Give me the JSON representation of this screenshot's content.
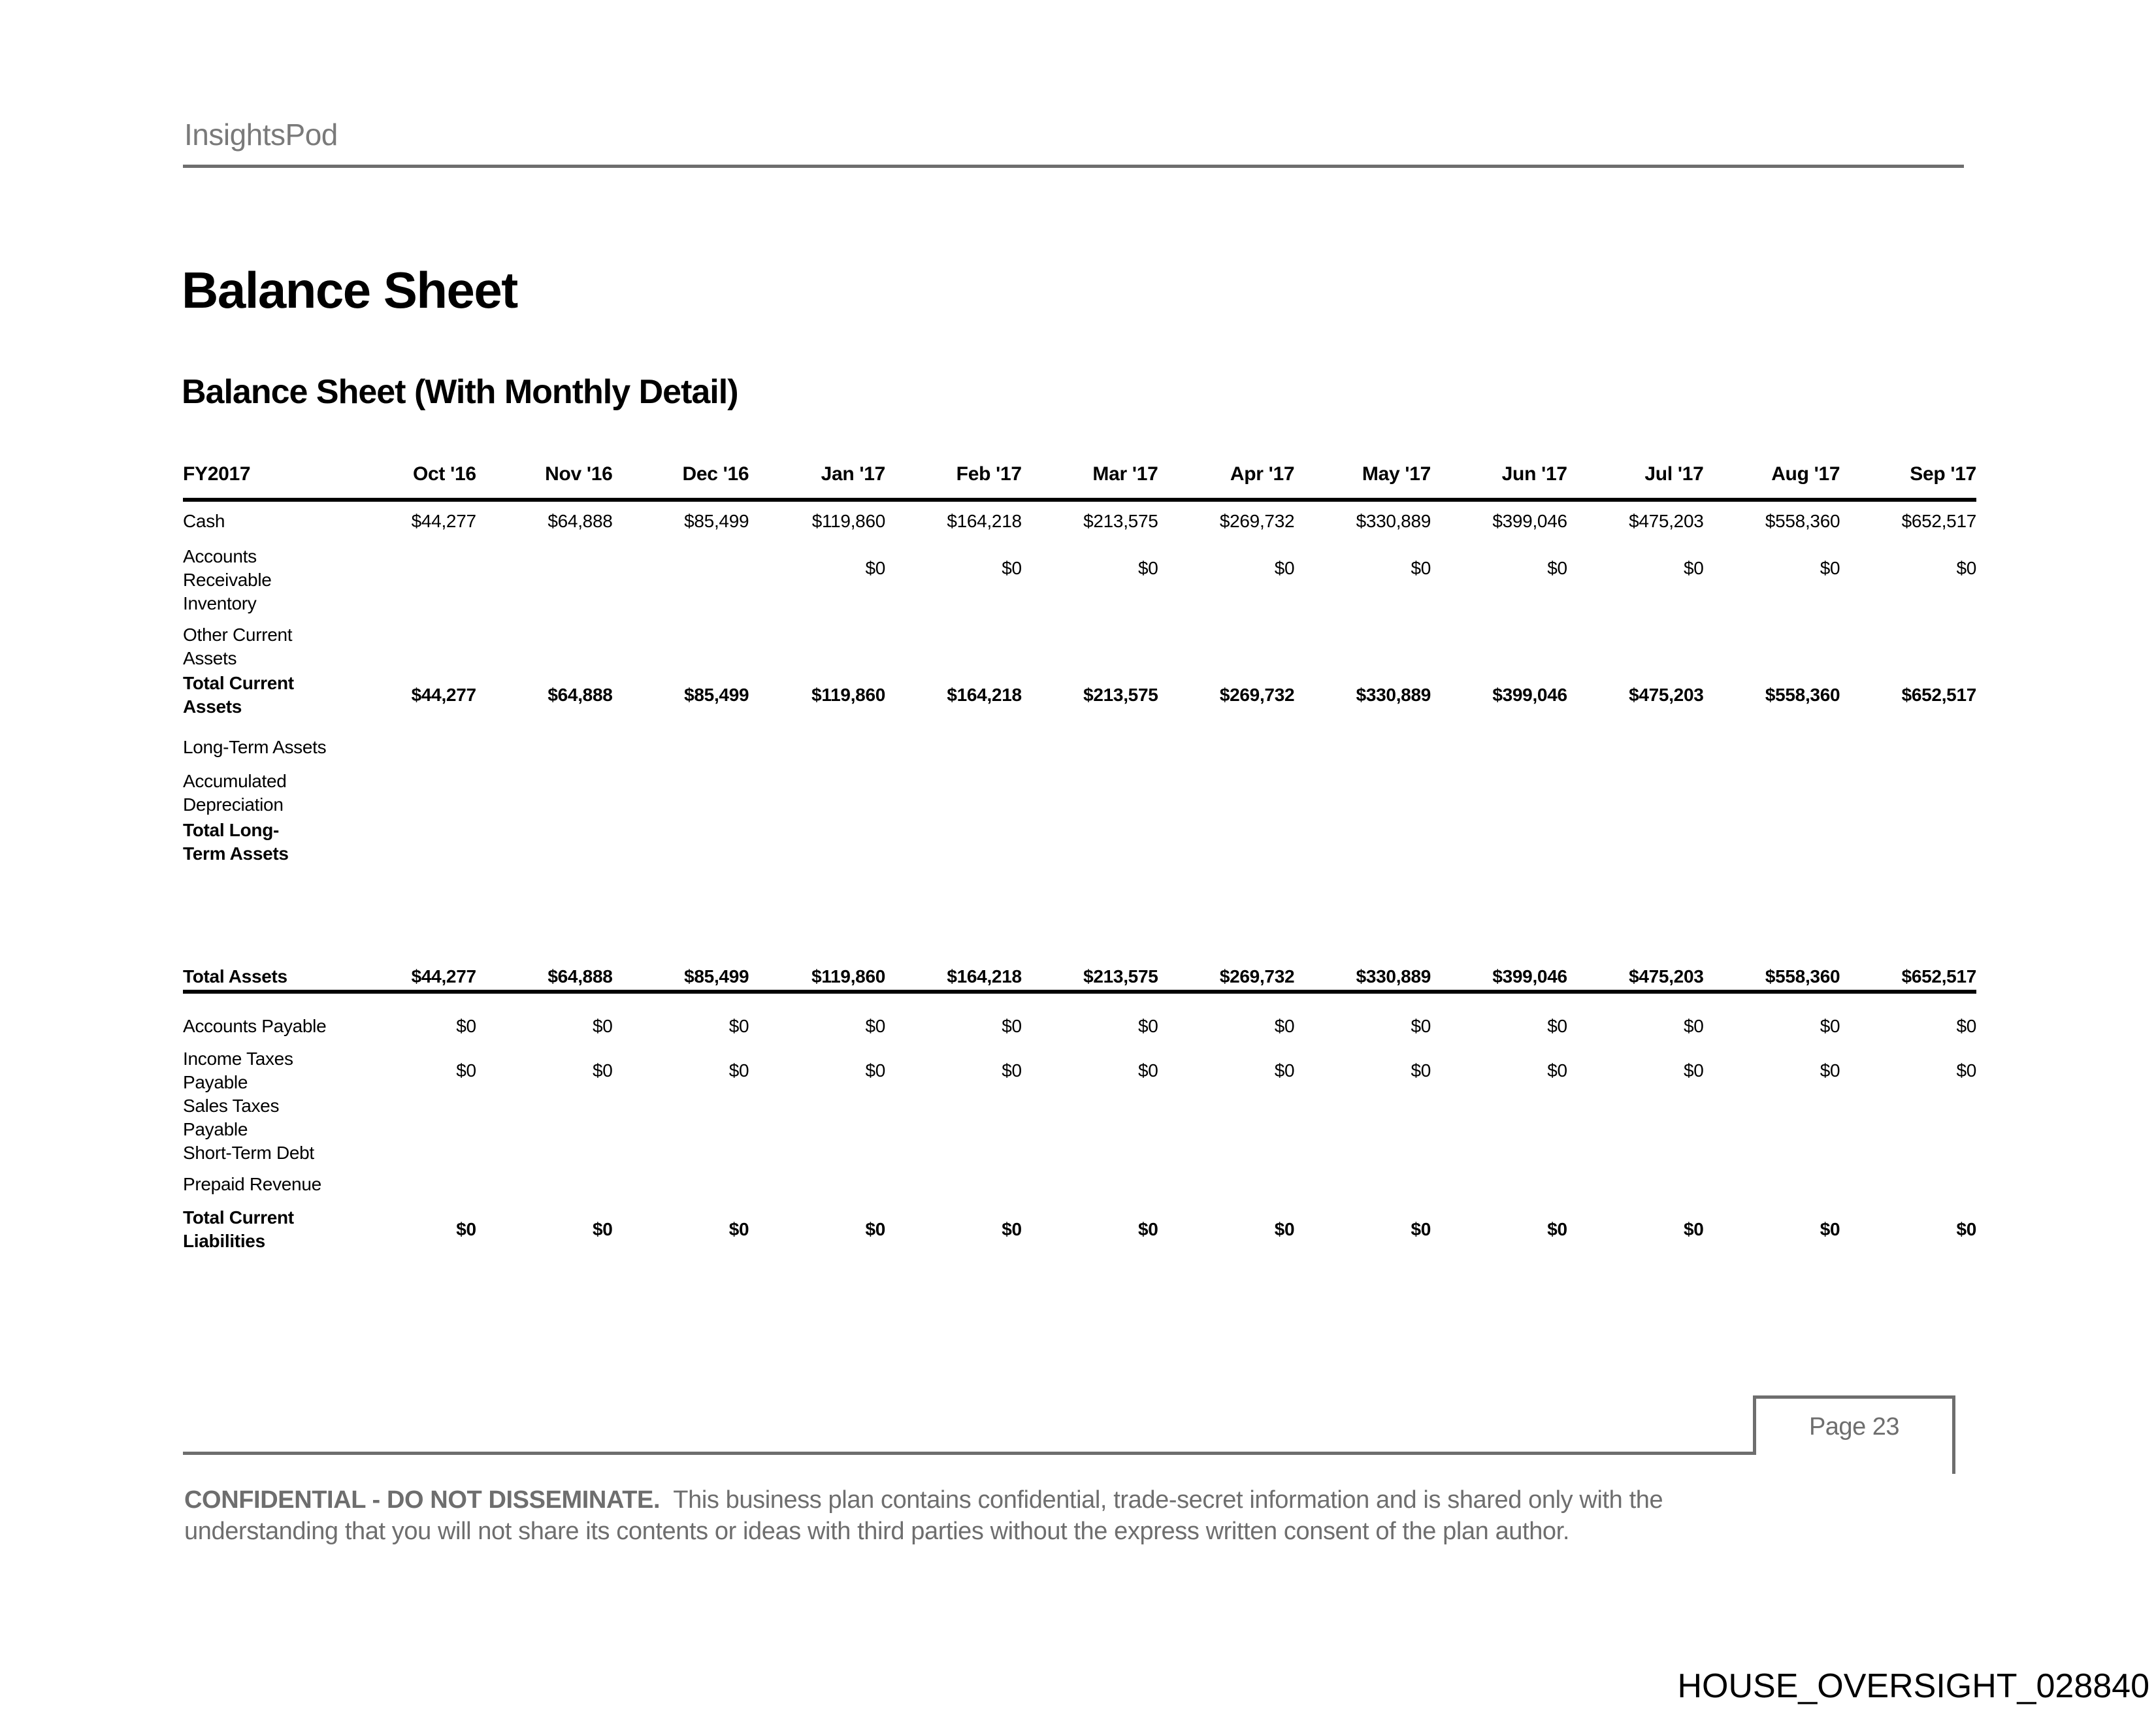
{
  "brand": {
    "name": "InsightsPod"
  },
  "page": {
    "title": "Balance Sheet",
    "subtitle": "Balance Sheet (With Monthly Detail)",
    "page_label": "Page 23",
    "watermark": "HOUSE_OVERSIGHT_028840"
  },
  "table": {
    "fiscal_year": "FY2017",
    "months": [
      "Oct '16",
      "Nov '16",
      "Dec '16",
      "Jan '17",
      "Feb '17",
      "Mar '17",
      "Apr '17",
      "May '17",
      "Jun '17",
      "Jul '17",
      "Aug '17",
      "Sep '17"
    ],
    "rows": [
      {
        "label": "Cash",
        "is_total": false,
        "rule_below": false,
        "gap_before": false,
        "values": [
          "$44,277",
          "$64,888",
          "$85,499",
          "$119,860",
          "$164,218",
          "$213,575",
          "$269,732",
          "$330,889",
          "$399,046",
          "$475,203",
          "$558,360",
          "$652,517"
        ]
      },
      {
        "label": "Accounts\nReceivable",
        "is_total": false,
        "rule_below": false,
        "gap_before": false,
        "values": [
          "",
          "",
          "",
          "$0",
          "$0",
          "$0",
          "$0",
          "$0",
          "$0",
          "$0",
          "$0",
          "$0"
        ]
      },
      {
        "label": "Inventory",
        "is_total": false,
        "rule_below": false,
        "gap_before": false,
        "values": [
          "",
          "",
          "",
          "",
          "",
          "",
          "",
          "",
          "",
          "",
          "",
          ""
        ]
      },
      {
        "label": "Other Current\nAssets",
        "is_total": false,
        "rule_below": false,
        "gap_before": false,
        "values": [
          "",
          "",
          "",
          "",
          "",
          "",
          "",
          "",
          "",
          "",
          "",
          ""
        ]
      },
      {
        "label": "Total Current\nAssets",
        "is_total": true,
        "rule_below": false,
        "gap_before": false,
        "values": [
          "$44,277",
          "$64,888",
          "$85,499",
          "$119,860",
          "$164,218",
          "$213,575",
          "$269,732",
          "$330,889",
          "$399,046",
          "$475,203",
          "$558,360",
          "$652,517"
        ]
      },
      {
        "label": "Long-Term Assets",
        "is_total": false,
        "rule_below": false,
        "gap_before": false,
        "values": [
          "",
          "",
          "",
          "",
          "",
          "",
          "",
          "",
          "",
          "",
          "",
          ""
        ]
      },
      {
        "label": "Accumulated\nDepreciation",
        "is_total": false,
        "rule_below": false,
        "gap_before": false,
        "values": [
          "",
          "",
          "",
          "",
          "",
          "",
          "",
          "",
          "",
          "",
          "",
          ""
        ]
      },
      {
        "label": "Total Long-\nTerm Assets",
        "is_total": true,
        "rule_below": false,
        "gap_before": false,
        "values": [
          "",
          "",
          "",
          "",
          "",
          "",
          "",
          "",
          "",
          "",
          "",
          ""
        ]
      },
      {
        "label": "Total Assets",
        "is_total": true,
        "rule_below": true,
        "gap_before": true,
        "values": [
          "$44,277",
          "$64,888",
          "$85,499",
          "$119,860",
          "$164,218",
          "$213,575",
          "$269,732",
          "$330,889",
          "$399,046",
          "$475,203",
          "$558,360",
          "$652,517"
        ]
      },
      {
        "label": "Accounts Payable",
        "is_total": false,
        "rule_below": false,
        "gap_before": false,
        "values": [
          "$0",
          "$0",
          "$0",
          "$0",
          "$0",
          "$0",
          "$0",
          "$0",
          "$0",
          "$0",
          "$0",
          "$0"
        ]
      },
      {
        "label": "Income Taxes\nPayable",
        "is_total": false,
        "rule_below": false,
        "gap_before": false,
        "values": [
          "$0",
          "$0",
          "$0",
          "$0",
          "$0",
          "$0",
          "$0",
          "$0",
          "$0",
          "$0",
          "$0",
          "$0"
        ]
      },
      {
        "label": "Sales Taxes\nPayable",
        "is_total": false,
        "rule_below": false,
        "gap_before": false,
        "values": [
          "",
          "",
          "",
          "",
          "",
          "",
          "",
          "",
          "",
          "",
          "",
          ""
        ]
      },
      {
        "label": "Short-Term Debt",
        "is_total": false,
        "rule_below": false,
        "gap_before": false,
        "values": [
          "",
          "",
          "",
          "",
          "",
          "",
          "",
          "",
          "",
          "",
          "",
          ""
        ]
      },
      {
        "label": "Prepaid Revenue",
        "is_total": false,
        "rule_below": false,
        "gap_before": false,
        "values": [
          "",
          "",
          "",
          "",
          "",
          "",
          "",
          "",
          "",
          "",
          "",
          ""
        ]
      },
      {
        "label": "Total Current\nLiabilities",
        "is_total": true,
        "rule_below": false,
        "gap_before": false,
        "values": [
          "$0",
          "$0",
          "$0",
          "$0",
          "$0",
          "$0",
          "$0",
          "$0",
          "$0",
          "$0",
          "$0",
          "$0"
        ]
      }
    ]
  },
  "footer": {
    "confidential_bold": "CONFIDENTIAL - DO NOT DISSEMINATE.",
    "confidential_line1": "This business plan contains confidential, trade-secret information and is shared only with the",
    "confidential_line2": "understanding that you will not share its contents or ideas with third parties without the express written consent of the plan author."
  },
  "colors": {
    "rule_gray": "#6e6e6e",
    "muted_text": "#6e6e6e",
    "ink": "#000000"
  }
}
